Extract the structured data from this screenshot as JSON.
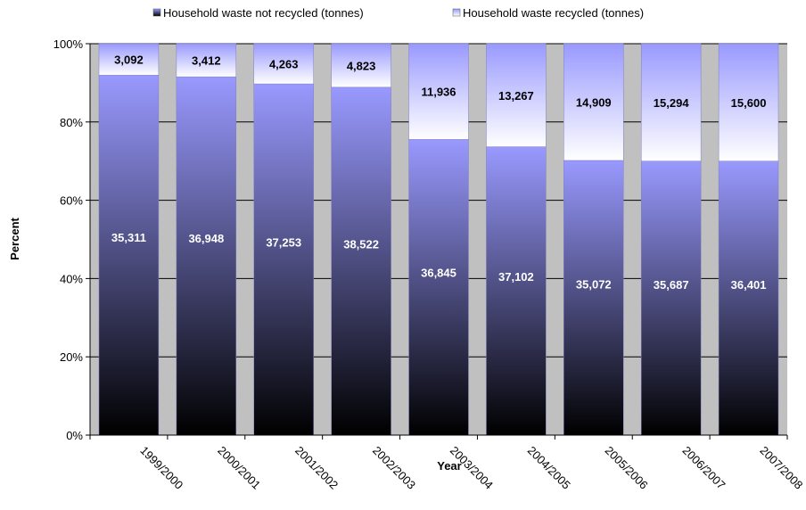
{
  "chart_data": {
    "type": "bar",
    "stacked": "percent",
    "categories": [
      "1999/2000",
      "2000/2001",
      "2001/2002",
      "2002/2003",
      "2003/2004",
      "2004/2005",
      "2005/2006",
      "2006/2007",
      "2007/2008"
    ],
    "series": [
      {
        "name": "Household waste not recycled (tonnes)",
        "values": [
          35311,
          36948,
          37253,
          38522,
          36845,
          37102,
          35072,
          35687,
          36401
        ],
        "labels": [
          "35,311",
          "36,948",
          "37,253",
          "38,522",
          "36,845",
          "37,102",
          "35,072",
          "35,687",
          "36,401"
        ],
        "color_top": "#9999ff",
        "color_bottom": "#000000",
        "label_color": "#ffffff"
      },
      {
        "name": "Household waste recycled (tonnes)",
        "values": [
          3092,
          3412,
          4263,
          4823,
          11936,
          13267,
          14909,
          15294,
          15600
        ],
        "labels": [
          "3,092",
          "3,412",
          "4,263",
          "4,823",
          "11,936",
          "13,267",
          "14,909",
          "15,294",
          "15,600"
        ],
        "color_top": "#9999ff",
        "color_bottom": "#ffffff",
        "label_color": "#000000"
      }
    ],
    "xlabel": "Year",
    "ylabel": "Percent",
    "ylim": [
      0,
      100
    ],
    "yticks": [
      "0%",
      "20%",
      "40%",
      "60%",
      "80%",
      "100%"
    ],
    "grid": true,
    "plot_background": "#c0c0c0",
    "legend_position": "top"
  }
}
